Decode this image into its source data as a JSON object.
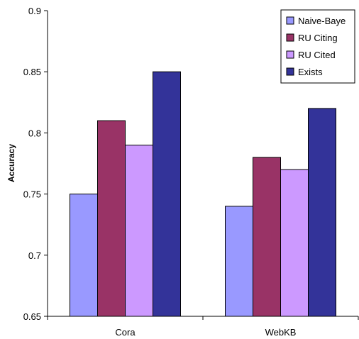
{
  "chart_data": {
    "type": "bar",
    "categories": [
      "Cora",
      "WebKB"
    ],
    "series": [
      {
        "name": "Naive-Baye",
        "values": [
          0.75,
          0.74
        ],
        "color": "#9999ff"
      },
      {
        "name": "RU Citing",
        "values": [
          0.81,
          0.78
        ],
        "color": "#993366"
      },
      {
        "name": "RU Cited",
        "values": [
          0.79,
          0.77
        ],
        "color": "#cc99ff"
      },
      {
        "name": "Exists",
        "values": [
          0.85,
          0.82
        ],
        "color": "#333399"
      }
    ],
    "series_colors_note": "",
    "ylabel": "Accuracy",
    "xlabel": "",
    "ylim": [
      0.65,
      0.9
    ],
    "yticks": [
      "0.65",
      "0.7",
      "0.75",
      "0.8",
      "0.85",
      "0.9"
    ],
    "ytick_values": [
      0.65,
      0.7,
      0.75,
      0.8,
      0.85,
      0.9
    ],
    "grid": false,
    "legend_position": "top-right"
  }
}
